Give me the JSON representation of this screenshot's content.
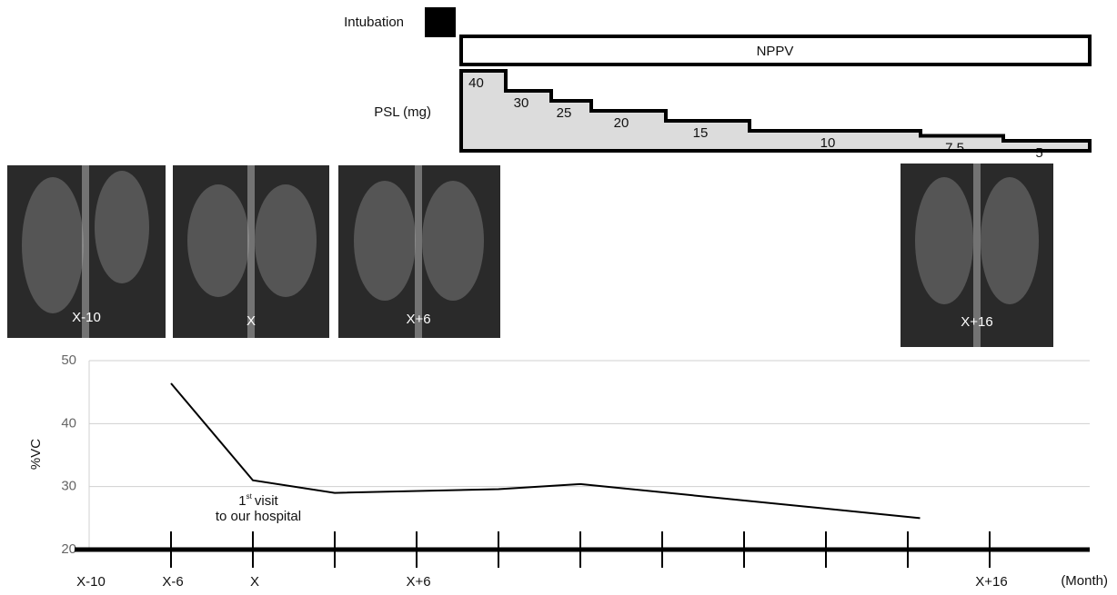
{
  "chart_data": [
    {
      "type": "step",
      "label": "PSL (mg)",
      "values": [
        40,
        30,
        25,
        20,
        15,
        10,
        7.5,
        5
      ],
      "color": "#dcdcdc"
    },
    {
      "type": "line",
      "ylabel": "%VC",
      "xlabel": "(Month)",
      "categories": [
        "X-10",
        "X-6",
        "X",
        null,
        "X+6",
        null,
        null,
        null,
        null,
        null,
        null,
        "X+16"
      ],
      "x": [
        1,
        2,
        3,
        5,
        6,
        10.15
      ],
      "values": [
        46.4,
        31.0,
        29.0,
        29.6,
        30.4,
        25.0
      ],
      "ylim": [
        20,
        50
      ],
      "yticks": [
        20,
        30,
        40,
        50
      ],
      "grid": true,
      "color": "#000000",
      "annotation": {
        "number": "1",
        "superscript": "st",
        "line1": "visit",
        "line2": "to our hospital"
      }
    }
  ],
  "treatments": {
    "intubation": "Intubation",
    "nppv": "NPPV"
  },
  "xrays": [
    "X-10",
    "X",
    "X+6",
    "X+16"
  ]
}
